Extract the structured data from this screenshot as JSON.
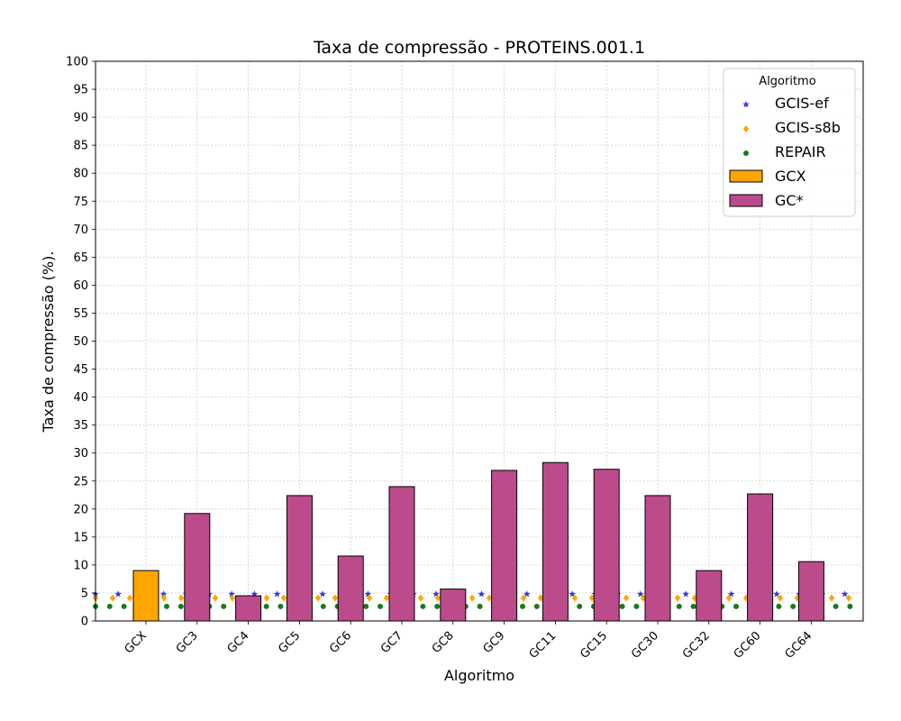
{
  "chart_data": {
    "type": "bar",
    "title": "Taxa de compressão -  PROTEINS.001.1",
    "xlabel": "Algoritmo",
    "ylabel": "Taxa de compressão (%).",
    "ylim": [
      0,
      100
    ],
    "yticks": [
      0,
      5,
      10,
      15,
      20,
      25,
      30,
      35,
      40,
      45,
      50,
      55,
      60,
      65,
      70,
      75,
      80,
      85,
      90,
      95,
      100
    ],
    "grid": true,
    "legend_position": "top-right",
    "legend_title": "Algoritmo",
    "categories": [
      "GCX",
      "GC3",
      "GC4",
      "GC5",
      "GC6",
      "GC7",
      "GC8",
      "GC9",
      "GC11",
      "GC15",
      "GC30",
      "GC32",
      "GC60",
      "GC64"
    ],
    "series": [
      {
        "name": "GCX",
        "color": "#ffa500",
        "values": [
          9.0,
          null,
          null,
          null,
          null,
          null,
          null,
          null,
          null,
          null,
          null,
          null,
          null,
          null
        ]
      },
      {
        "name": "GC*",
        "color": "#bc4b8c",
        "values": [
          null,
          19.2,
          4.5,
          22.4,
          11.6,
          24.0,
          5.7,
          26.9,
          28.3,
          27.1,
          22.4,
          9.0,
          22.7,
          10.6
        ]
      }
    ],
    "reference_lines": [
      {
        "name": "GCIS-ef",
        "value": 4.8,
        "color": "#3b3bdb",
        "marker": "star"
      },
      {
        "name": "GCIS-s8b",
        "value": 4.1,
        "color": "#ffa500",
        "marker": "diamond"
      },
      {
        "name": "REPAIR",
        "value": 2.6,
        "color": "#1a7a1a",
        "marker": "circle"
      }
    ]
  }
}
